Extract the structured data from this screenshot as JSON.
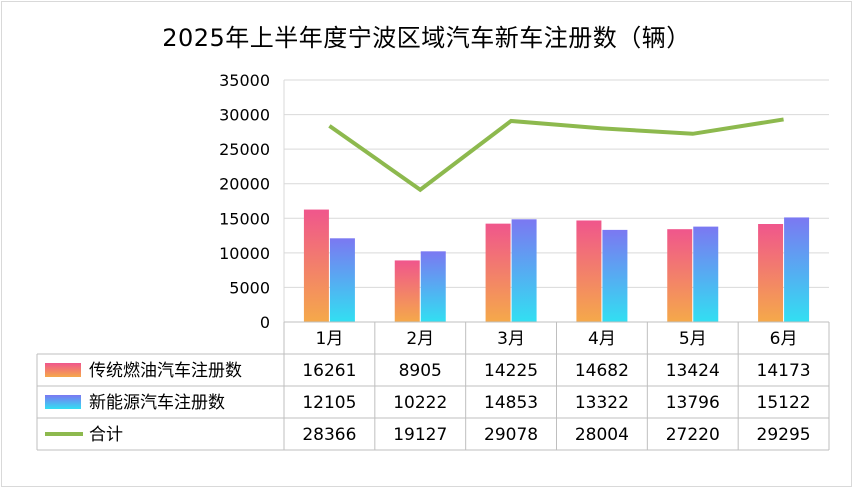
{
  "chart_data": {
    "type": "bar",
    "title": "2025年上半年度宁波区域汽车新车注册数（辆）",
    "categories": [
      "1月",
      "2月",
      "3月",
      "4月",
      "5月",
      "6月"
    ],
    "series": [
      {
        "name": "传统燃油汽车注册数",
        "type": "bar",
        "values": [
          16261,
          8905,
          14225,
          14682,
          13424,
          14173
        ],
        "color": "#f5a94a",
        "color_top": "#f0568c"
      },
      {
        "name": "新能源汽车注册数",
        "type": "bar",
        "values": [
          12105,
          10222,
          14853,
          13322,
          13796,
          15122
        ],
        "color": "#32dff2",
        "color_top": "#7b78f2"
      },
      {
        "name": "合计",
        "type": "line",
        "values": [
          28366,
          19127,
          29078,
          28004,
          27220,
          29295
        ],
        "color": "#8db94e"
      }
    ],
    "yticks": [
      0,
      5000,
      10000,
      15000,
      20000,
      25000,
      30000,
      35000
    ],
    "ylim": [
      0,
      35000
    ],
    "grid": true,
    "legend": "data-table"
  }
}
